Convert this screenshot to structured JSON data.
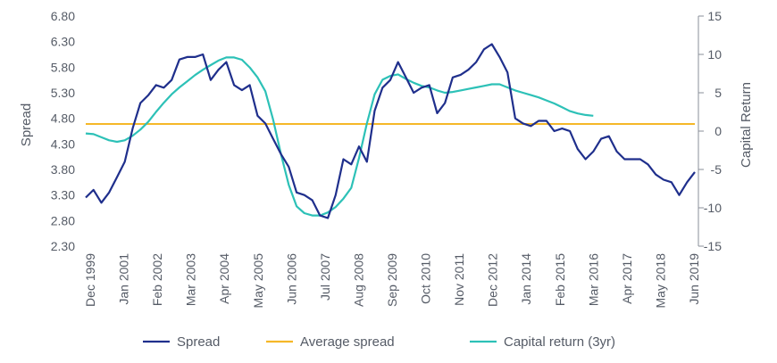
{
  "chart_data": {
    "type": "line",
    "ylabel": "Spread",
    "y2label": "Capital Return",
    "ylim": [
      2.3,
      6.8
    ],
    "y2lim": [
      -15,
      15
    ],
    "y_ticks": [
      "2.30",
      "2.80",
      "3.30",
      "3.80",
      "4.30",
      "4.80",
      "5.30",
      "5.80",
      "6.30",
      "6.80"
    ],
    "y2_ticks": [
      "-15",
      "-10",
      "-5",
      "0",
      "5",
      "10",
      "15"
    ],
    "x_tick_labels": [
      "Dec 1999",
      "Jan 2001",
      "Feb 2002",
      "Mar 2003",
      "Apr 2004",
      "May 2005",
      "Jun 2006",
      "Jul 2007",
      "Aug 2008",
      "Sep 2009",
      "Oct 2010",
      "Nov 2011",
      "Dec 2012",
      "Jan 2014",
      "Feb 2015",
      "Mar 2016",
      "Apr 2017",
      "May 2018",
      "Jun 2019"
    ],
    "legend_position": "bottom",
    "grid": false,
    "series": [
      {
        "name": "Spread",
        "axis": "left",
        "color": "#1f2f8c",
        "x": [
          "1999-12",
          "2000-03",
          "2000-06",
          "2000-09",
          "2000-12",
          "2001-03",
          "2001-06",
          "2001-09",
          "2001-12",
          "2002-03",
          "2002-06",
          "2002-09",
          "2002-12",
          "2003-03",
          "2003-06",
          "2003-09",
          "2003-12",
          "2004-03",
          "2004-06",
          "2004-09",
          "2004-12",
          "2005-03",
          "2005-06",
          "2005-09",
          "2005-12",
          "2006-03",
          "2006-06",
          "2006-09",
          "2006-12",
          "2007-03",
          "2007-06",
          "2007-09",
          "2007-12",
          "2008-03",
          "2008-06",
          "2008-09",
          "2008-12",
          "2009-03",
          "2009-06",
          "2009-09",
          "2009-12",
          "2010-03",
          "2010-06",
          "2010-09",
          "2010-12",
          "2011-03",
          "2011-06",
          "2011-09",
          "2011-12",
          "2012-03",
          "2012-06",
          "2012-09",
          "2012-12",
          "2013-03",
          "2013-06",
          "2013-09",
          "2013-12",
          "2014-03",
          "2014-06",
          "2014-09",
          "2014-12",
          "2015-03",
          "2015-06",
          "2015-09",
          "2015-12",
          "2016-03",
          "2016-06",
          "2016-09",
          "2016-12",
          "2017-03",
          "2017-06",
          "2017-09",
          "2017-12",
          "2018-03",
          "2018-06",
          "2018-09",
          "2018-12",
          "2019-03",
          "2019-06"
        ],
        "values": [
          3.25,
          3.4,
          3.15,
          3.35,
          3.65,
          3.95,
          4.6,
          5.1,
          5.25,
          5.45,
          5.4,
          5.55,
          5.95,
          6.0,
          6.0,
          6.05,
          5.55,
          5.75,
          5.9,
          5.45,
          5.35,
          5.45,
          4.85,
          4.7,
          4.4,
          4.1,
          3.85,
          3.35,
          3.3,
          3.2,
          2.9,
          2.85,
          3.3,
          4.0,
          3.9,
          4.25,
          3.95,
          4.95,
          5.4,
          5.55,
          5.9,
          5.6,
          5.3,
          5.4,
          5.45,
          4.9,
          5.1,
          5.6,
          5.65,
          5.75,
          5.9,
          6.15,
          6.25,
          6.0,
          5.7,
          4.8,
          4.7,
          4.65,
          4.75,
          4.75,
          4.55,
          4.6,
          4.55,
          4.2,
          4.0,
          4.15,
          4.4,
          4.45,
          4.15,
          4.0,
          4.0,
          4.0,
          3.9,
          3.7,
          3.6,
          3.55,
          3.3,
          3.55,
          3.75
        ]
      },
      {
        "name": "Average spread",
        "axis": "left",
        "color": "#f5b828",
        "x": [
          "1999-12",
          "2019-06"
        ],
        "values": [
          4.69,
          4.69
        ]
      },
      {
        "name": "Capital return (3yr)",
        "axis": "right",
        "color": "#2dc1b7",
        "x": [
          "1999-12",
          "2000-03",
          "2000-06",
          "2000-09",
          "2000-12",
          "2001-03",
          "2001-06",
          "2001-09",
          "2001-12",
          "2002-03",
          "2002-06",
          "2002-09",
          "2002-12",
          "2003-03",
          "2003-06",
          "2003-09",
          "2003-12",
          "2004-03",
          "2004-06",
          "2004-09",
          "2004-12",
          "2005-03",
          "2005-06",
          "2005-09",
          "2005-12",
          "2006-03",
          "2006-06",
          "2006-09",
          "2006-12",
          "2007-03",
          "2007-06",
          "2007-09",
          "2007-12",
          "2008-03",
          "2008-06",
          "2008-09",
          "2008-12",
          "2009-03",
          "2009-06",
          "2009-09",
          "2009-12",
          "2010-03",
          "2010-06",
          "2010-09",
          "2010-12",
          "2011-03",
          "2011-06",
          "2011-09",
          "2011-12",
          "2012-03",
          "2012-06",
          "2012-09",
          "2012-12",
          "2013-03",
          "2013-06",
          "2013-09",
          "2013-12",
          "2014-03",
          "2014-06",
          "2014-09",
          "2014-12",
          "2015-03",
          "2015-06",
          "2015-09",
          "2015-12",
          "2016-03"
        ],
        "values": [
          -0.3,
          -0.4,
          -0.8,
          -1.2,
          -1.4,
          -1.2,
          -0.6,
          0.2,
          1.2,
          2.5,
          3.7,
          4.8,
          5.7,
          6.5,
          7.3,
          8.0,
          8.6,
          9.2,
          9.6,
          9.6,
          9.3,
          8.3,
          7.0,
          5.2,
          1.5,
          -3.0,
          -7.0,
          -9.8,
          -10.7,
          -11.0,
          -11.0,
          -10.6,
          -9.9,
          -8.8,
          -7.4,
          -3.5,
          1.0,
          4.8,
          6.7,
          7.2,
          7.4,
          6.8,
          6.3,
          5.9,
          5.7,
          5.3,
          5.0,
          5.1,
          5.3,
          5.5,
          5.7,
          5.9,
          6.1,
          6.1,
          5.7,
          5.3,
          5.0,
          4.7,
          4.4,
          4.0,
          3.6,
          3.1,
          2.6,
          2.3,
          2.1,
          2.0
        ]
      }
    ]
  }
}
